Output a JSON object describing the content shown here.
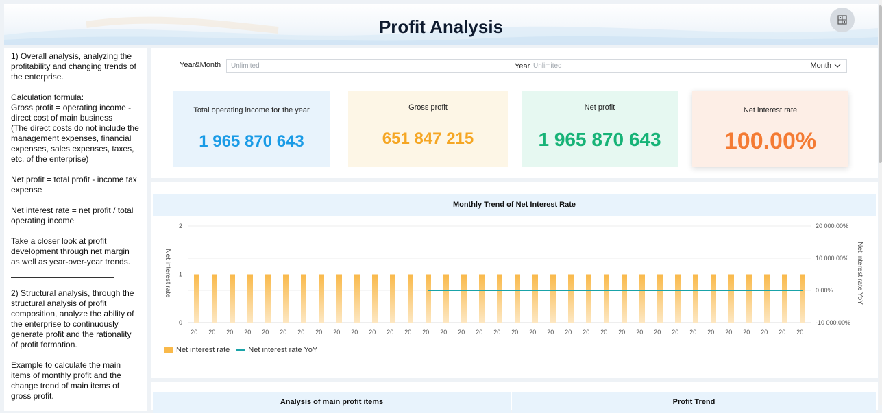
{
  "header": {
    "title": "Profit Analysis",
    "settings_icon": "grid-settings-icon"
  },
  "notes": {
    "paragraphs": [
      "1) Overall analysis, analyzing the profitability and changing trends of the enterprise.",
      "Calculation formula:\nGross profit = operating income - direct cost of main business\n(The direct costs do not include the management expenses, financial expenses, sales expenses, taxes, etc. of the enterprise)",
      "Net profit = total profit - income tax expense",
      "Net interest rate = net profit / total operating income",
      "Take a closer look at profit development through net margin as well as year-over-year trends."
    ],
    "paragraphs2": [
      "2) Structural analysis, through the structural analysis of profit composition, analyze the ability of the enterprise to continuously generate profit and the rationality of profit formation.",
      "Example to calculate the main items of monthly profit and the change trend of main items of gross profit."
    ]
  },
  "filter": {
    "year_month_label": "Year&Month",
    "year_month_placeholder": "Unlimited",
    "year_label": "Year",
    "year_placeholder": "Unlimited",
    "month_label": "Month"
  },
  "kpis": [
    {
      "label": "Total operating income for the year",
      "value": "1 965 870 643",
      "color": "#1a9be6",
      "bg": "#e8f3fc"
    },
    {
      "label": "Gross profit",
      "value": "651 847 215",
      "color": "#f5a623",
      "bg": "#fdf6e6"
    },
    {
      "label": "Net profit",
      "value": "1 965 870 643",
      "color": "#17b377",
      "bg": "#e6f8f1"
    },
    {
      "label": "Net interest rate",
      "value": "100.00%",
      "color": "#f47b34",
      "bg": "#fdeee6"
    }
  ],
  "chart_data": {
    "type": "bar",
    "title": "Monthly Trend of Net Interest Rate",
    "ylabel": "Net interest rate",
    "y2label": "Net interest rate YoY",
    "ylim": [
      0,
      2
    ],
    "y_ticks": [
      "0",
      "1",
      "2"
    ],
    "y2lim": [
      -10000,
      20000
    ],
    "y2_ticks": [
      "-10 000.00%",
      "0.00%",
      "10 000.00%",
      "20 000.00%"
    ],
    "x_tick_label": "20...",
    "bar_count": 35,
    "series": [
      {
        "name": "Net interest rate",
        "values": [
          1,
          1,
          1,
          1,
          1,
          1,
          1,
          1,
          1,
          1,
          1,
          1,
          1,
          1,
          1,
          1,
          1,
          1,
          1,
          1,
          1,
          1,
          1,
          1,
          1,
          1,
          1,
          1,
          1,
          1,
          1,
          1,
          1,
          1,
          1
        ],
        "color": "#f9b94a"
      },
      {
        "name": "Net interest rate YoY",
        "values": [
          null,
          null,
          null,
          null,
          null,
          null,
          null,
          null,
          null,
          null,
          null,
          null,
          null,
          0,
          0,
          0,
          0,
          0,
          0,
          0,
          0,
          0,
          0,
          0,
          0,
          0,
          0,
          0,
          0,
          0,
          0,
          0,
          0,
          0,
          0
        ],
        "color": "#1aa3a8"
      }
    ],
    "legend": "bottom-left"
  },
  "bottom": {
    "tab1": "Analysis of main profit items",
    "tab2": "Profit Trend"
  }
}
